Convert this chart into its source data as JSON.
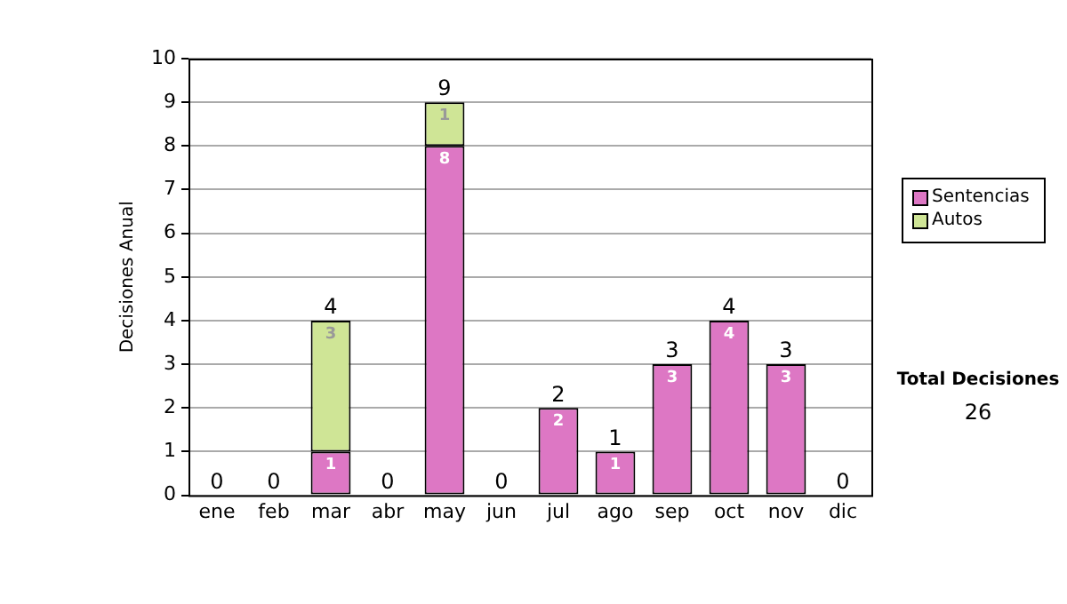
{
  "chart_data": {
    "type": "bar",
    "stacked": true,
    "ylabel": "Decisiones Anual",
    "categories": [
      "ene",
      "feb",
      "mar",
      "abr",
      "may",
      "jun",
      "jul",
      "ago",
      "sep",
      "oct",
      "nov",
      "dic"
    ],
    "series": [
      {
        "name": "Sentencias",
        "color": "#dd77c4",
        "values": [
          0,
          0,
          1,
          0,
          8,
          0,
          2,
          1,
          3,
          4,
          3,
          0
        ],
        "value_labels": [
          null,
          null,
          "1",
          null,
          "8",
          null,
          "2",
          "1",
          "3",
          "4",
          "3",
          null
        ]
      },
      {
        "name": "Autos",
        "color": "#cfe596",
        "values": [
          0,
          0,
          3,
          0,
          1,
          0,
          0,
          0,
          0,
          0,
          0,
          0
        ],
        "value_labels": [
          null,
          null,
          "3",
          null,
          "1",
          null,
          null,
          null,
          null,
          null,
          null,
          null
        ]
      }
    ],
    "totals": [
      "0",
      "0",
      "4",
      "0",
      "9",
      "0",
      "2",
      "1",
      "3",
      "4",
      "3",
      "0"
    ],
    "ylim": [
      0,
      10
    ],
    "yticks": [
      0,
      1,
      2,
      3,
      4,
      5,
      6,
      7,
      8,
      9,
      10
    ],
    "grid": "y",
    "legend": "right",
    "annotations": [
      "Total Decisiones",
      "26"
    ]
  }
}
